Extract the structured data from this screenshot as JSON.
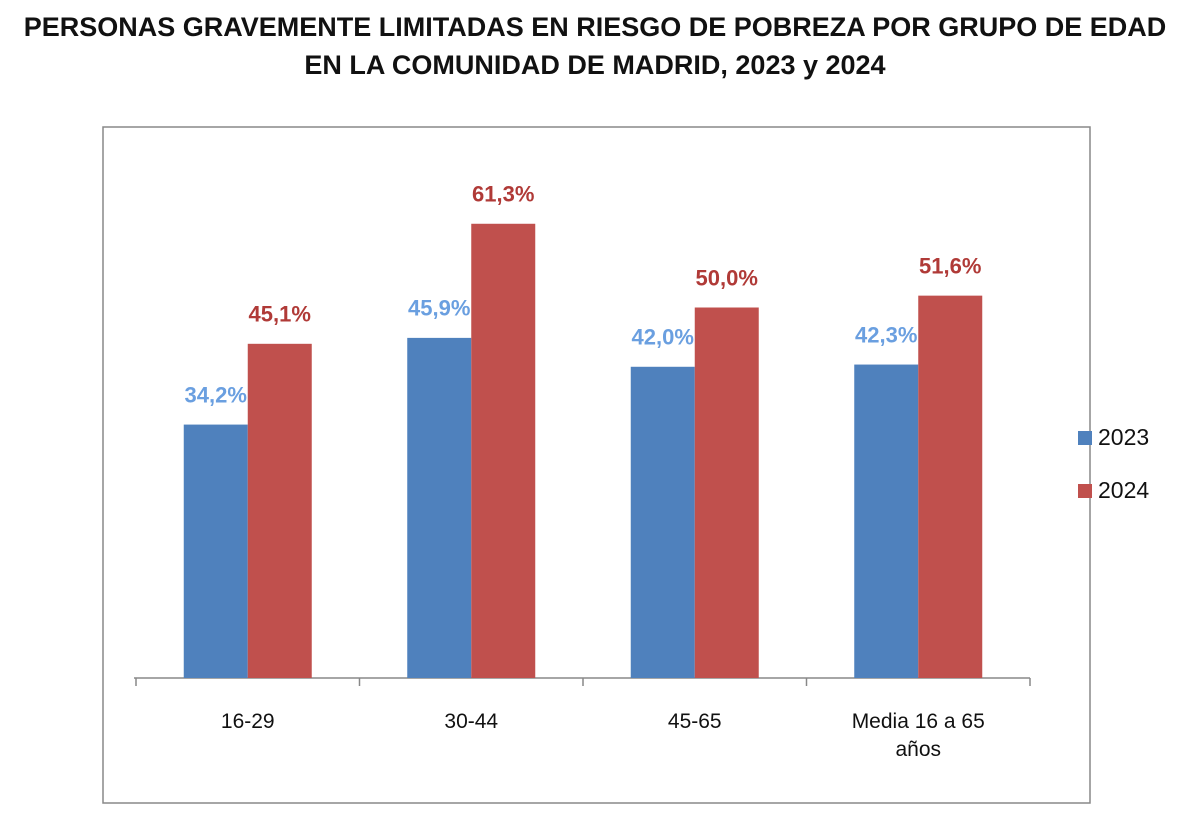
{
  "chart_data": {
    "type": "bar",
    "title": "PERSONAS GRAVEMENTE LIMITADAS EN RIESGO DE POBREZA POR GRUPO DE EDAD EN LA COMUNIDAD DE MADRID, 2023 y 2024",
    "categories": [
      "16-29",
      "30-44",
      "45-65",
      "Media 16 a 65 años"
    ],
    "series": [
      {
        "name": "2023",
        "color": "#4f81bd",
        "label_color": "#6a9fe0",
        "values": [
          34.2,
          45.9,
          42.0,
          42.3
        ],
        "value_labels": [
          "34,2%",
          "45,9%",
          "42,0%",
          "42,3%"
        ]
      },
      {
        "name": "2024",
        "color": "#c0504d",
        "label_color": "#b03a37",
        "values": [
          45.1,
          61.3,
          50.0,
          51.6
        ],
        "value_labels": [
          "45,1%",
          "61,3%",
          "50,0%",
          "51,6%"
        ]
      }
    ],
    "legend": "right"
  }
}
